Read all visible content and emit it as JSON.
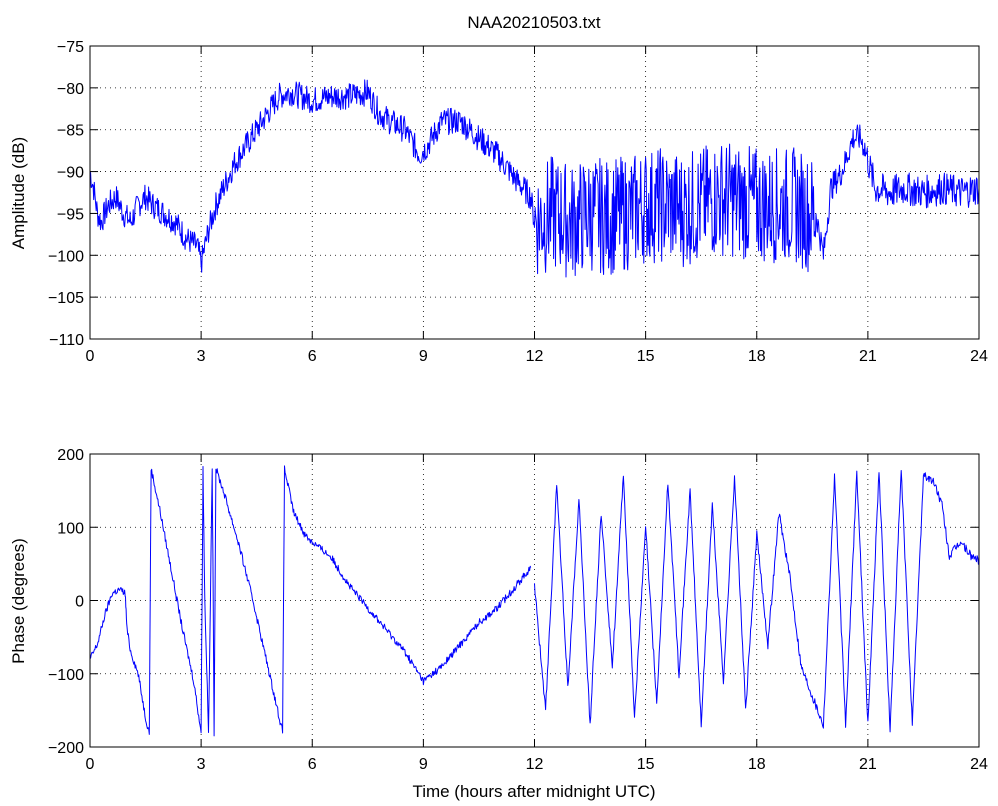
{
  "chart_data": [
    {
      "type": "line",
      "title": "NAA20210503.txt",
      "xlabel": "",
      "ylabel": "Amplitude (dB)",
      "xlim": [
        0,
        24
      ],
      "ylim": [
        -110,
        -75
      ],
      "xticks": [
        "0",
        "3",
        "6",
        "9",
        "12",
        "15",
        "18",
        "21",
        "24"
      ],
      "yticks": [
        "−110",
        "−105",
        "−100",
        "−95",
        "−90",
        "−85",
        "−80",
        "−75"
      ],
      "grid": true,
      "color": "#0000ff",
      "series": [
        {
          "x": [
            0,
            0.1,
            0.2,
            0.3,
            0.5,
            0.7,
            0.9,
            1.1,
            1.3,
            1.5,
            1.7,
            2.0,
            2.3,
            2.6,
            2.9,
            3.0,
            3.2,
            3.4,
            3.6,
            3.9,
            4.2,
            4.5,
            4.8,
            5.1,
            5.4,
            5.7,
            6.0,
            6.5,
            7.0,
            7.5,
            7.8,
            8.1,
            8.5,
            8.9,
            9.1,
            9.5,
            10.0,
            10.5,
            11.0,
            11.5,
            11.9,
            12.0,
            12.5,
            13.0,
            13.5,
            14.0,
            14.5,
            15.0,
            15.5,
            16.0,
            16.5,
            17.0,
            17.5,
            18.0,
            18.5,
            19.0,
            19.4,
            19.6,
            19.8,
            20.0,
            20.3,
            20.6,
            20.8,
            20.9,
            21.2,
            21.6,
            22.0,
            22.5,
            23.0,
            23.5,
            24.0
          ],
          "values": [
            -90,
            -92,
            -95,
            -96,
            -94,
            -93,
            -95,
            -96,
            -94,
            -93,
            -94,
            -95,
            -96,
            -98,
            -99,
            -101,
            -97,
            -94,
            -92,
            -89,
            -87,
            -85,
            -83,
            -81,
            -80.5,
            -81,
            -81.5,
            -81,
            -81,
            -80.5,
            -83,
            -84,
            -85,
            -88,
            -87,
            -84,
            -84,
            -86,
            -88,
            -91,
            -93,
            -96,
            -95,
            -96,
            -95,
            -95.5,
            -95,
            -94,
            -94,
            -94.5,
            -94,
            -93,
            -93.5,
            -94,
            -94,
            -94,
            -95,
            -95,
            -100,
            -92,
            -90,
            -86,
            -86,
            -87,
            -92,
            -92.5,
            -92,
            -92.5,
            -92,
            -92.5,
            -92
          ]
        }
      ]
    },
    {
      "type": "line",
      "title": "",
      "xlabel": "Time (hours after midnight UTC)",
      "ylabel": "Phase (degrees)",
      "xlim": [
        0,
        24
      ],
      "ylim": [
        -200,
        200
      ],
      "xticks": [
        "0",
        "3",
        "6",
        "9",
        "12",
        "15",
        "18",
        "21",
        "24"
      ],
      "yticks": [
        "−200",
        "−100",
        "0",
        "100",
        "200"
      ],
      "grid": true,
      "color": "#0000ff",
      "series": [
        {
          "x": [
            0,
            0.2,
            0.4,
            0.6,
            0.8,
            0.95,
            1.0,
            1.1,
            1.3,
            1.5,
            1.6,
            1.65,
            1.9,
            2.2,
            2.5,
            2.8,
            3.0,
            3.05,
            3.1,
            3.2,
            3.3,
            3.35,
            3.4,
            3.6,
            4.0,
            4.4,
            4.8,
            5.2,
            5.25,
            5.5,
            5.8,
            6.0,
            6.5,
            7.0,
            7.5,
            8.0,
            8.5,
            9.0,
            9.5,
            10.0,
            10.5,
            11.0,
            11.5,
            11.9
          ],
          "values": [
            -80,
            -60,
            -20,
            10,
            15,
            10,
            -40,
            -70,
            -100,
            -160,
            -180,
            180,
            120,
            40,
            -40,
            -110,
            -180,
            180,
            0,
            -180,
            180,
            -180,
            180,
            150,
            80,
            0,
            -90,
            -180,
            180,
            120,
            90,
            80,
            60,
            20,
            -10,
            -40,
            -70,
            -110,
            -90,
            -60,
            -30,
            -10,
            20,
            45
          ]
        },
        {
          "x": [
            12.0,
            12.3,
            12.6,
            12.9,
            13.2,
            13.5,
            13.8,
            14.1,
            14.4,
            14.7,
            15.0,
            15.3,
            15.6,
            15.9,
            16.2,
            16.5,
            16.8,
            17.1,
            17.4,
            17.7,
            18.0,
            18.3,
            18.6,
            18.9,
            19.2,
            19.5,
            19.8,
            20.1,
            20.4,
            20.7,
            21.0,
            21.3,
            21.6,
            21.9,
            22.2,
            22.5,
            22.8,
            23.0,
            23.2,
            23.5,
            23.8,
            24.0
          ],
          "values": [
            20,
            -150,
            160,
            -120,
            140,
            -170,
            120,
            -90,
            170,
            -160,
            100,
            -140,
            160,
            -100,
            150,
            -170,
            130,
            -110,
            170,
            -150,
            90,
            -60,
            120,
            30,
            -90,
            -130,
            -170,
            170,
            -170,
            175,
            -170,
            178,
            -178,
            178,
            -170,
            172,
            160,
            130,
            60,
            80,
            60,
            55
          ]
        }
      ]
    }
  ]
}
